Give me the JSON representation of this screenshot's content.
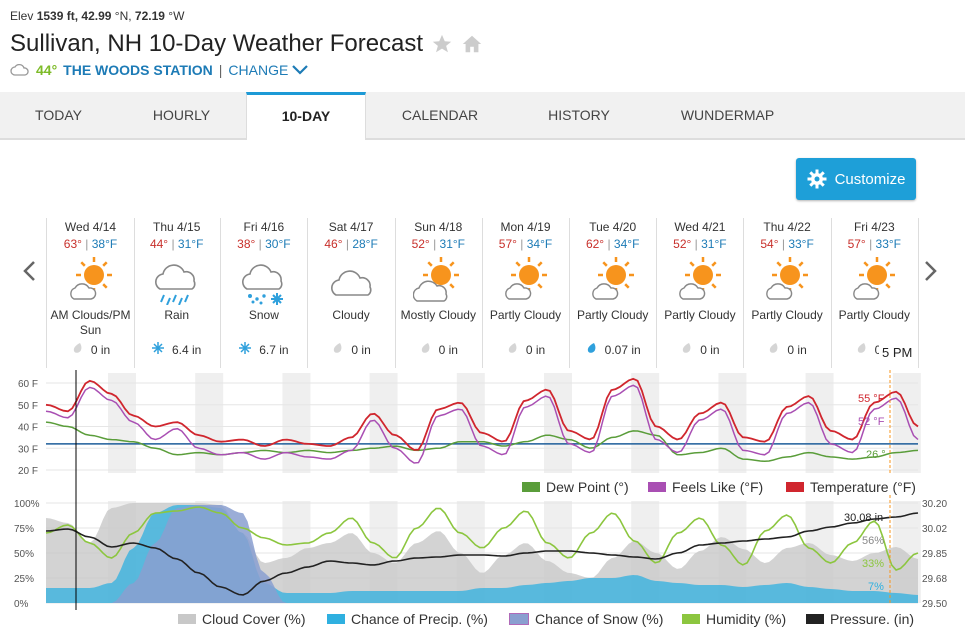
{
  "header": {
    "elev_label": "Elev",
    "elev_value": "1539 ft,",
    "lat": "42.99",
    "lat_unit": "°N,",
    "lon": "72.19",
    "lon_unit": "°W",
    "title": "Sullivan, NH 10-Day Weather Forecast",
    "current_temp": "44°",
    "station": "THE WOODS STATION",
    "separator": "|",
    "change": "CHANGE"
  },
  "tabs": [
    "TODAY",
    "HOURLY",
    "10-DAY",
    "CALENDAR",
    "HISTORY",
    "WUNDERMAP"
  ],
  "active_tab": "10-DAY",
  "customize_label": "Customize",
  "days": [
    {
      "name": "Wed 4/14",
      "hi": "63°",
      "lo": "38°F",
      "icon": "partly-cloudy-sun-icon",
      "cond": "AM Clouds/PM Sun",
      "precip": "0 in",
      "precip_type": "drop"
    },
    {
      "name": "Thu 4/15",
      "hi": "44°",
      "lo": "31°F",
      "icon": "rain-icon",
      "cond": "Rain",
      "precip": "6.4 in",
      "precip_type": "snow"
    },
    {
      "name": "Fri 4/16",
      "hi": "38°",
      "lo": "30°F",
      "icon": "snow-icon",
      "cond": "Snow",
      "precip": "6.7 in",
      "precip_type": "snow"
    },
    {
      "name": "Sat 4/17",
      "hi": "46°",
      "lo": "28°F",
      "icon": "cloudy-icon",
      "cond": "Cloudy",
      "precip": "0 in",
      "precip_type": "drop"
    },
    {
      "name": "Sun 4/18",
      "hi": "52°",
      "lo": "31°F",
      "icon": "mostly-cloudy-icon",
      "cond": "Mostly Cloudy",
      "precip": "0 in",
      "precip_type": "drop"
    },
    {
      "name": "Mon 4/19",
      "hi": "57°",
      "lo": "34°F",
      "icon": "partly-cloudy-icon",
      "cond": "Partly Cloudy",
      "precip": "0 in",
      "precip_type": "drop"
    },
    {
      "name": "Tue 4/20",
      "hi": "62°",
      "lo": "34°F",
      "icon": "partly-cloudy-icon",
      "cond": "Partly Cloudy",
      "precip": "0.07 in",
      "precip_type": "drop-blue"
    },
    {
      "name": "Wed 4/21",
      "hi": "52°",
      "lo": "31°F",
      "icon": "partly-cloudy-icon",
      "cond": "Partly Cloudy",
      "precip": "0 in",
      "precip_type": "drop"
    },
    {
      "name": "Thu 4/22",
      "hi": "54°",
      "lo": "33°F",
      "icon": "partly-cloudy-icon",
      "cond": "Partly Cloudy",
      "precip": "0 in",
      "precip_type": "drop"
    },
    {
      "name": "Fri 4/23",
      "hi": "57°",
      "lo": "33°F",
      "icon": "partly-cloudy-icon",
      "cond": "Partly Cloudy",
      "precip": "0 in",
      "precip_type": "drop"
    }
  ],
  "time_badge": "5 PM",
  "temp_chart": {
    "y_ticks": [
      "60 F",
      "50 F",
      "40 F",
      "30 F",
      "20 F"
    ],
    "hover_temp": "55 °F",
    "hover_feels": "52 °F",
    "hover_dew": "26 °",
    "legend": [
      "Dew Point (°)",
      "Feels Like (°F)",
      "Temperature (°F)"
    ]
  },
  "humid_chart": {
    "y_ticks_left": [
      "100%",
      "75%",
      "50%",
      "25%",
      "0%"
    ],
    "y_ticks_right": [
      "30.20",
      "30.02",
      "29.85",
      "29.68",
      "29.50"
    ],
    "hover_pressure": "30.08 in",
    "hover_cloud": "56%",
    "hover_humidity": "33%",
    "hover_precip": "7%",
    "legend": [
      "Cloud Cover (%)",
      "Chance of Precip. (%)",
      "Chance of Snow (%)",
      "Humidity (%)",
      "Pressure. (in)"
    ]
  },
  "colors": {
    "temperature": "#d0262e",
    "feels_like": "#a94fb3",
    "dew_point": "#5a9d3a",
    "cloud": "#c8c8c8",
    "precip": "#2fb0e0",
    "snow": "#8a9fd0",
    "humidity": "#8cc63f",
    "pressure": "#222222",
    "accent": "#1e9fd8",
    "freezing": "#1d5d9a"
  }
}
